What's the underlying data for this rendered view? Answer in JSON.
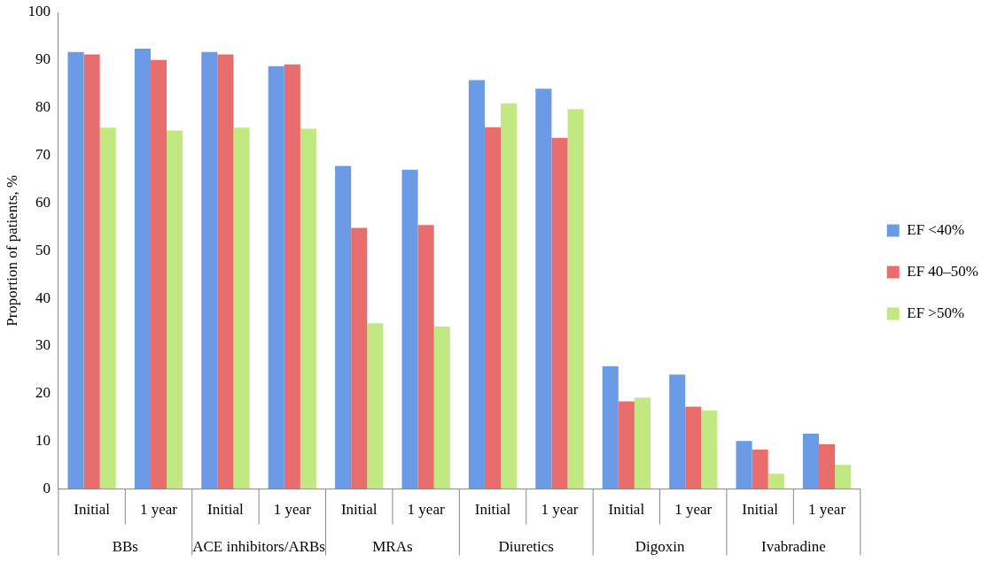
{
  "chart_data": {
    "type": "bar",
    "ylabel": "Proportion of patients, %",
    "categories": [
      "Initial",
      "1 year",
      "Initial",
      "1 year",
      "Initial",
      "1 year",
      "Initial",
      "1 year",
      "Initial",
      "1 year",
      "Initial",
      "1 year"
    ],
    "annotations": [
      "BBs",
      "ACE inhibitors/ARBs",
      "MRAs",
      "Diuretics",
      "Digoxin",
      "Ivabradine"
    ],
    "series": [
      {
        "name": "EF <40%",
        "color": "#6b9be6",
        "values": [
          91.7,
          92.4,
          91.7,
          88.7,
          67.8,
          67,
          85.8,
          84,
          25.8,
          24,
          10.1,
          11.6
        ]
      },
      {
        "name": "EF 40–50%",
        "color": "#e86d6d",
        "values": [
          91.2,
          90,
          91.2,
          89.1,
          54.8,
          55.4,
          75.9,
          73.7,
          18.4,
          17.3,
          8.3,
          9.4
        ]
      },
      {
        "name": "EF >50%",
        "color": "#c2e882",
        "values": [
          75.8,
          75.2,
          75.8,
          75.6,
          34.8,
          34.1,
          80.9,
          79.7,
          19.2,
          16.5,
          3.2,
          5.1
        ]
      }
    ],
    "ylim": [
      0,
      100
    ],
    "yticks": [
      0,
      10,
      20,
      30,
      40,
      50,
      60,
      70,
      80,
      90,
      100
    ],
    "grid": false,
    "legend": "right"
  }
}
